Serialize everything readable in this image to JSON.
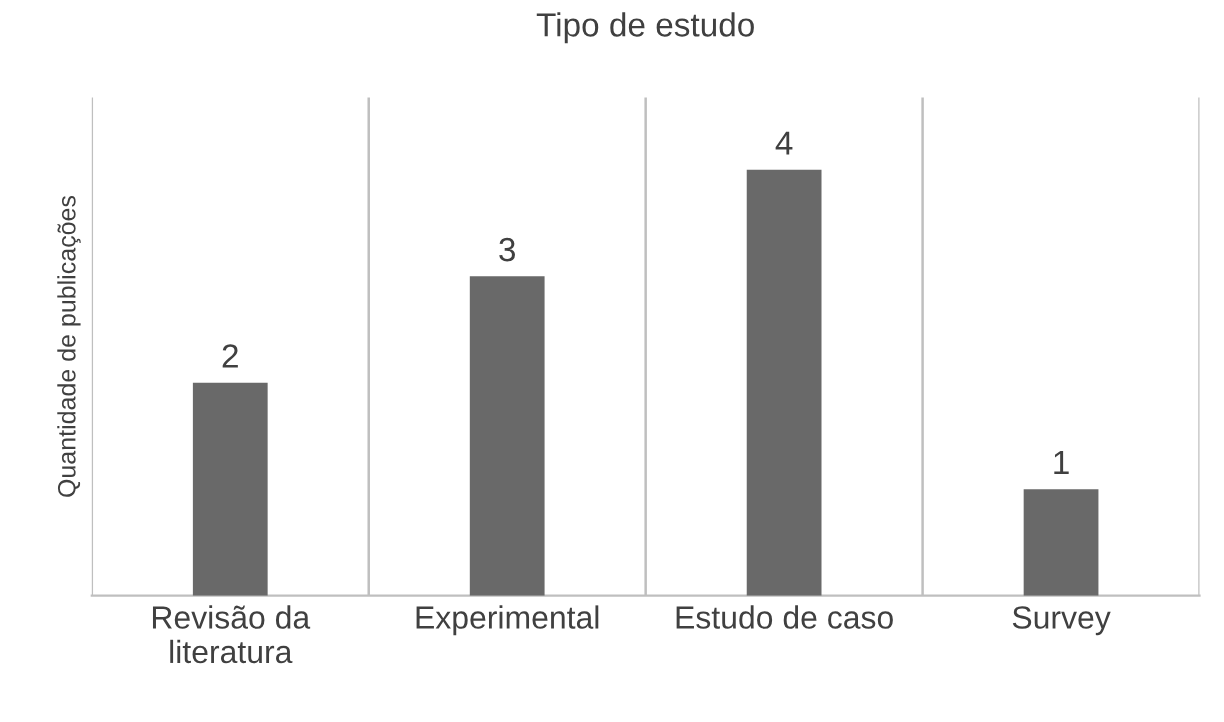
{
  "chart_data": {
    "type": "bar",
    "title": "Tipo de estudo",
    "ylabel": "Quantidade de publicações",
    "categories": [
      "Revisão da\nliteratura",
      "Experimental",
      "Estudo de caso",
      "Survey"
    ],
    "values": [
      2,
      3,
      4,
      1
    ],
    "color": "#696969",
    "data_labels": true,
    "grid": "x",
    "legend": false,
    "tick_labels": "x"
  }
}
